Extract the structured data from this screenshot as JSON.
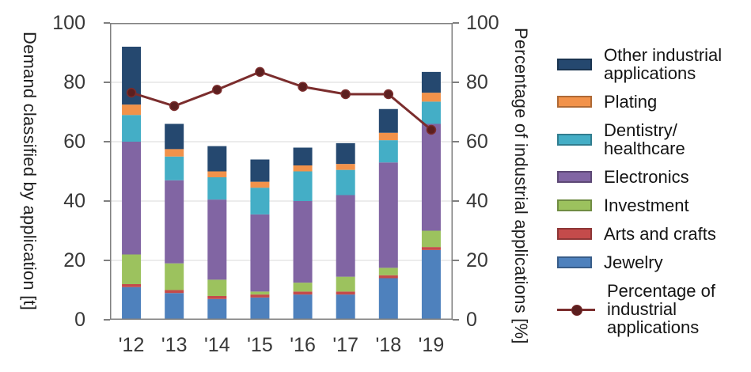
{
  "chart_data": {
    "type": "bar",
    "subtype": "stacked-bars-with-line-overlay",
    "categories": [
      "'12",
      "'13",
      "'14",
      "'15",
      "'16",
      "'17",
      "'18",
      "'19"
    ],
    "series": [
      {
        "name": "Jewelry",
        "color": "#4e81bd",
        "values": [
          11,
          9,
          7,
          7.5,
          8.5,
          8.5,
          14,
          23.5
        ]
      },
      {
        "name": "Arts and crafts",
        "color": "#c44b4b",
        "values": [
          1,
          1,
          1,
          1,
          1,
          1,
          1,
          1
        ]
      },
      {
        "name": "Investment",
        "color": "#9cc25e",
        "values": [
          10,
          9,
          5.5,
          1,
          3,
          5,
          2.5,
          5.5
        ]
      },
      {
        "name": "Electronics",
        "color": "#8165a3",
        "values": [
          38,
          28,
          27,
          26,
          27.5,
          27.5,
          35.5,
          36
        ]
      },
      {
        "name": "Dentistry/healthcare",
        "color": "#44aec6",
        "values": [
          9,
          8,
          7.5,
          9,
          10,
          8.5,
          7.5,
          7.5
        ]
      },
      {
        "name": "Plating",
        "color": "#f2924a",
        "values": [
          3.5,
          2.5,
          2,
          2,
          2,
          2,
          2.5,
          3
        ]
      },
      {
        "name": "Other industrial applications",
        "color": "#25486f",
        "values": [
          19.5,
          8.5,
          8.5,
          7.5,
          6,
          7,
          8,
          7
        ]
      }
    ],
    "bar_totals": [
      92,
      66,
      58.5,
      54,
      58,
      59.5,
      71,
      83.5
    ],
    "line_series": {
      "name": "Percentage of industrial applications",
      "color": "#7b2d2d",
      "marker_color": "#5c1f1f",
      "values": [
        76.5,
        72,
        77.5,
        83.5,
        78.5,
        76,
        76,
        64
      ]
    },
    "left_axis": {
      "label": "Demand classified by application [t]",
      "min": 0,
      "max": 100,
      "ticks": [
        0,
        20,
        40,
        60,
        80,
        100
      ]
    },
    "right_axis": {
      "label": "Percentage of industrial applications [%]",
      "min": 0,
      "max": 100,
      "ticks": [
        0,
        20,
        40,
        60,
        80,
        100
      ]
    },
    "grid": true,
    "grid_color": "#d9d9d9",
    "frame_color": "#808080",
    "legend_position": "right"
  },
  "legend": {
    "items": [
      {
        "label": "Other industrial\napplications",
        "type": "swatch",
        "color": "#25486f"
      },
      {
        "label": "Plating",
        "type": "swatch",
        "color": "#f2924a"
      },
      {
        "label": "Dentistry/\nhealthcare",
        "type": "swatch",
        "color": "#44aec6"
      },
      {
        "label": "Electronics",
        "type": "swatch",
        "color": "#8165a3"
      },
      {
        "label": "Investment",
        "type": "swatch",
        "color": "#9cc25e"
      },
      {
        "label": "Arts and crafts",
        "type": "swatch",
        "color": "#c44b4b"
      },
      {
        "label": "Jewelry",
        "type": "swatch",
        "color": "#4e81bd"
      },
      {
        "label": "Percentage of\nindustrial\napplications",
        "type": "line-marker",
        "color": "#7b2d2d",
        "marker_color": "#5c1f1f"
      }
    ]
  }
}
